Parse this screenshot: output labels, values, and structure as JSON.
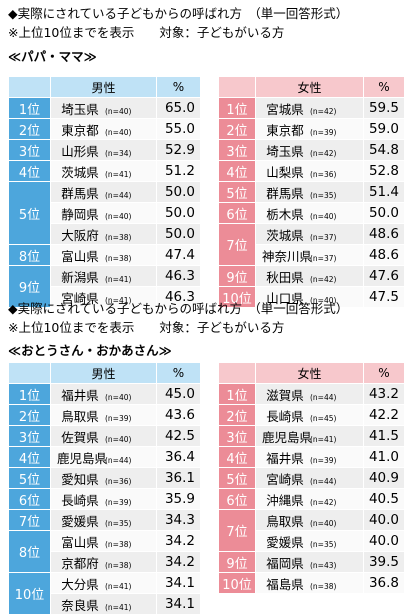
{
  "section1": {
    "title": "◆実際にされている子どもからの呼ばれ方　（単一回答形式）",
    "note": "※上位10位までを表示　　対象：子どもがいる方",
    "subtitle": "≪パパ・ママ≫",
    "male": {
      "header_gender": "男性",
      "header_pct": "%",
      "rows": [
        {
          "rank": "1位",
          "pref": "埼玉県",
          "n": "(n=40)",
          "val": "65.0"
        },
        {
          "rank": "2位",
          "pref": "東京都",
          "n": "(n=40)",
          "val": "55.0"
        },
        {
          "rank": "3位",
          "pref": "山形県",
          "n": "(n=34)",
          "val": "52.9"
        },
        {
          "rank": "4位",
          "pref": "茨城県",
          "n": "(n=41)",
          "val": "51.2"
        },
        {
          "rank": "5位",
          "pref": "群馬県",
          "n": "(n=44)",
          "val": "50.0"
        },
        {
          "rank": "",
          "pref": "静岡県",
          "n": "(n=40)",
          "val": "50.0"
        },
        {
          "rank": "",
          "pref": "大阪府",
          "n": "(n=38)",
          "val": "50.0"
        },
        {
          "rank": "8位",
          "pref": "富山県",
          "n": "(n=38)",
          "val": "47.4"
        },
        {
          "rank": "9位",
          "pref": "新潟県",
          "n": "(n=41)",
          "val": "46.3"
        },
        {
          "rank": "",
          "pref": "宮崎県",
          "n": "(n=41)",
          "val": "46.3"
        }
      ]
    },
    "female": {
      "header_gender": "女性",
      "header_pct": "%",
      "rows": [
        {
          "rank": "1位",
          "pref": "宮城県",
          "n": "(n=42)",
          "val": "59.5"
        },
        {
          "rank": "2位",
          "pref": "東京都",
          "n": "(n=39)",
          "val": "59.0"
        },
        {
          "rank": "3位",
          "pref": "埼玉県",
          "n": "(n=42)",
          "val": "54.8"
        },
        {
          "rank": "4位",
          "pref": "山梨県",
          "n": "(n=36)",
          "val": "52.8"
        },
        {
          "rank": "5位",
          "pref": "群馬県",
          "n": "(n=35)",
          "val": "51.4"
        },
        {
          "rank": "6位",
          "pref": "栃木県",
          "n": "(n=40)",
          "val": "50.0"
        },
        {
          "rank": "7位",
          "pref": "茨城県",
          "n": "(n=37)",
          "val": "48.6"
        },
        {
          "rank": "",
          "pref": "神奈川県",
          "n": "(n=37)",
          "val": "48.6"
        },
        {
          "rank": "9位",
          "pref": "秋田県",
          "n": "(n=42)",
          "val": "47.6"
        },
        {
          "rank": "10位",
          "pref": "山口県",
          "n": "(n=40)",
          "val": "47.5"
        }
      ]
    }
  },
  "section2": {
    "title": "◆実際にされている子どもからの呼ばれ方　（単一回答形式）",
    "note": "※上位10位までを表示　　対象：子どもがいる方",
    "subtitle": "≪おとうさん・おかあさん≫",
    "male": {
      "header_gender": "男性",
      "header_pct": "%",
      "rows": [
        {
          "rank": "1位",
          "pref": "福井県",
          "n": "(n=40)",
          "val": "45.0"
        },
        {
          "rank": "2位",
          "pref": "鳥取県",
          "n": "(n=39)",
          "val": "43.6"
        },
        {
          "rank": "3位",
          "pref": "佐賀県",
          "n": "(n=40)",
          "val": "42.5"
        },
        {
          "rank": "4位",
          "pref": "鹿児島県",
          "n": "(n=44)",
          "val": "36.4"
        },
        {
          "rank": "5位",
          "pref": "愛知県",
          "n": "(n=36)",
          "val": "36.1"
        },
        {
          "rank": "6位",
          "pref": "長崎県",
          "n": "(n=39)",
          "val": "35.9"
        },
        {
          "rank": "7位",
          "pref": "愛媛県",
          "n": "(n=35)",
          "val": "34.3"
        },
        {
          "rank": "8位",
          "pref": "富山県",
          "n": "(n=38)",
          "val": "34.2"
        },
        {
          "rank": "",
          "pref": "京都府",
          "n": "(n=38)",
          "val": "34.2"
        },
        {
          "rank": "10位",
          "pref": "大分県",
          "n": "(n=41)",
          "val": "34.1"
        },
        {
          "rank": "",
          "pref": "奈良県",
          "n": "(n=41)",
          "val": "34.1"
        }
      ]
    },
    "female": {
      "header_gender": "女性",
      "header_pct": "%",
      "rows": [
        {
          "rank": "1位",
          "pref": "滋賀県",
          "n": "(n=44)",
          "val": "43.2"
        },
        {
          "rank": "2位",
          "pref": "長崎県",
          "n": "(n=45)",
          "val": "42.2"
        },
        {
          "rank": "3位",
          "pref": "鹿児島県",
          "n": "(n=41)",
          "val": "41.5"
        },
        {
          "rank": "4位",
          "pref": "福井県",
          "n": "(n=39)",
          "val": "41.0"
        },
        {
          "rank": "5位",
          "pref": "宮崎県",
          "n": "(n=44)",
          "val": "40.9"
        },
        {
          "rank": "6位",
          "pref": "沖縄県",
          "n": "(n=42)",
          "val": "40.5"
        },
        {
          "rank": "7位",
          "pref": "鳥取県",
          "n": "(n=40)",
          "val": "40.0"
        },
        {
          "rank": "",
          "pref": "愛媛県",
          "n": "(n=35)",
          "val": "40.0"
        },
        {
          "rank": "9位",
          "pref": "福岡県",
          "n": "(n=43)",
          "val": "39.5"
        },
        {
          "rank": "10位",
          "pref": "福島県",
          "n": "(n=38)",
          "val": "36.8"
        }
      ]
    }
  }
}
